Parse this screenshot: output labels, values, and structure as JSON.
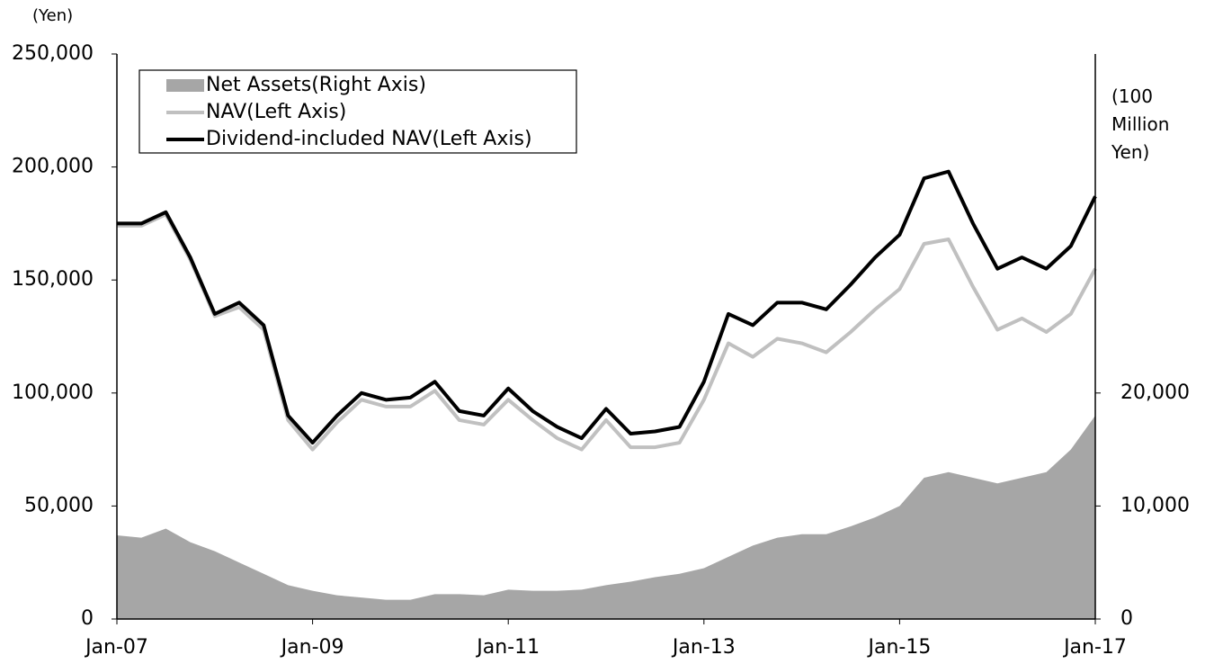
{
  "chart_data": {
    "type": "line",
    "y_label": "(Yen)",
    "y2_label": "(100 Million Yen)",
    "x": [
      2007.0,
      2007.25,
      2007.5,
      2007.75,
      2008.0,
      2008.25,
      2008.5,
      2008.75,
      2009.0,
      2009.25,
      2009.5,
      2009.75,
      2010.0,
      2010.25,
      2010.5,
      2010.75,
      2011.0,
      2011.25,
      2011.5,
      2011.75,
      2012.0,
      2012.25,
      2012.5,
      2012.75,
      2013.0,
      2013.25,
      2013.5,
      2013.75,
      2014.0,
      2014.25,
      2014.5,
      2014.75,
      2015.0,
      2015.25,
      2015.5,
      2015.75,
      2016.0,
      2016.25,
      2016.5,
      2016.75,
      2017.0
    ],
    "series": [
      {
        "name": "Net Assets(Right Axis)",
        "color": "#a6a6a6",
        "kind": "area",
        "axis": "y2",
        "values": [
          7400,
          7200,
          8000,
          6800,
          6000,
          5000,
          4000,
          3000,
          2500,
          2100,
          1900,
          1700,
          1700,
          2200,
          2200,
          2100,
          2600,
          2500,
          2500,
          2600,
          3000,
          3300,
          3700,
          4000,
          4500,
          5500,
          6500,
          7200,
          7500,
          7500,
          8200,
          9000,
          10000,
          12500,
          13000,
          12500,
          12000,
          12500,
          13000,
          15000,
          18000
        ]
      },
      {
        "name": "NAV(Left Axis)",
        "color": "#c0c0c0",
        "kind": "line",
        "values": [
          174000,
          174000,
          179000,
          159000,
          134000,
          138000,
          128000,
          88000,
          75000,
          87000,
          97000,
          94000,
          94000,
          101000,
          88000,
          86000,
          97000,
          88000,
          80000,
          75000,
          88000,
          76000,
          76000,
          78000,
          97000,
          122000,
          116000,
          124000,
          122000,
          118000,
          127000,
          137000,
          146000,
          166000,
          168000,
          147000,
          128000,
          133000,
          127000,
          135000,
          155000
        ]
      },
      {
        "name": "Dividend-included NAV(Left Axis)",
        "color": "#000000",
        "kind": "line",
        "values": [
          175000,
          175000,
          180000,
          160000,
          135000,
          140000,
          130000,
          90000,
          78000,
          90000,
          100000,
          97000,
          98000,
          105000,
          92000,
          90000,
          102000,
          92000,
          85000,
          80000,
          93000,
          82000,
          83000,
          85000,
          105000,
          135000,
          130000,
          140000,
          140000,
          137000,
          148000,
          160000,
          170000,
          195000,
          198000,
          175000,
          155000,
          160000,
          155000,
          165000,
          187000
        ]
      }
    ],
    "xlim": [
      2007,
      2017
    ],
    "xticks": [
      {
        "value": 2007,
        "label": "Jan-07"
      },
      {
        "value": 2009,
        "label": "Jan-09"
      },
      {
        "value": 2011,
        "label": "Jan-11"
      },
      {
        "value": 2013,
        "label": "Jan-13"
      },
      {
        "value": 2015,
        "label": "Jan-15"
      },
      {
        "value": 2017,
        "label": "Jan-17"
      }
    ],
    "ylim": [
      0,
      250000
    ],
    "yticks": [
      0,
      {
        "value": 50000,
        "label": "50,000"
      },
      {
        "value": 100000,
        "label": "100,000"
      },
      {
        "value": 150000,
        "label": "150,000"
      },
      {
        "value": 200000,
        "label": "200,000"
      },
      {
        "value": 250000,
        "label": "250,000"
      }
    ],
    "y2lim": [
      0,
      50000
    ],
    "y2ticks": [
      0,
      {
        "value": 10000,
        "label": "10,000"
      },
      {
        "value": 20000,
        "label": "20,000"
      }
    ],
    "legend": "upper left",
    "grid": false
  }
}
